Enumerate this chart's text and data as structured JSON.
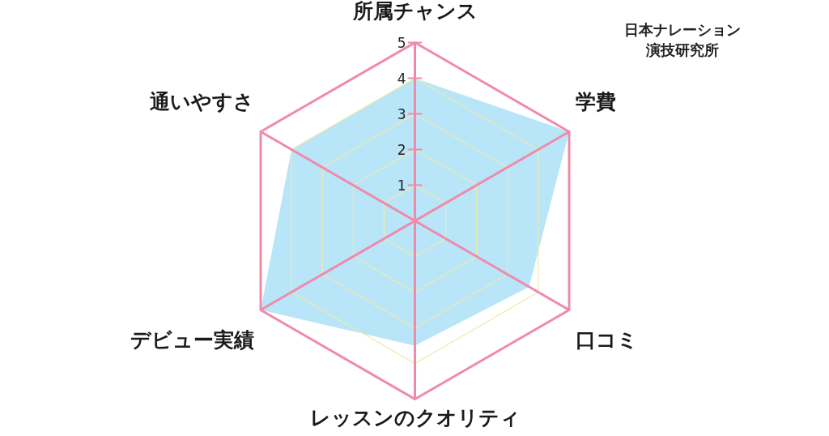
{
  "chart_data": {
    "type": "radar",
    "title": "日本ナレーション演技研究所",
    "categories": [
      "所属チャンス",
      "学費",
      "口コミ",
      "レッスンのクオリティ",
      "デビュー実績",
      "通いやすさ"
    ],
    "series": [
      {
        "color": "#b9e5f8",
        "values": [
          4,
          5,
          3.7,
          3.5,
          5,
          4
        ]
      }
    ],
    "ylim": [
      0,
      5
    ],
    "yticks": [
      1,
      2,
      3,
      4,
      5
    ],
    "grid": true
  }
}
